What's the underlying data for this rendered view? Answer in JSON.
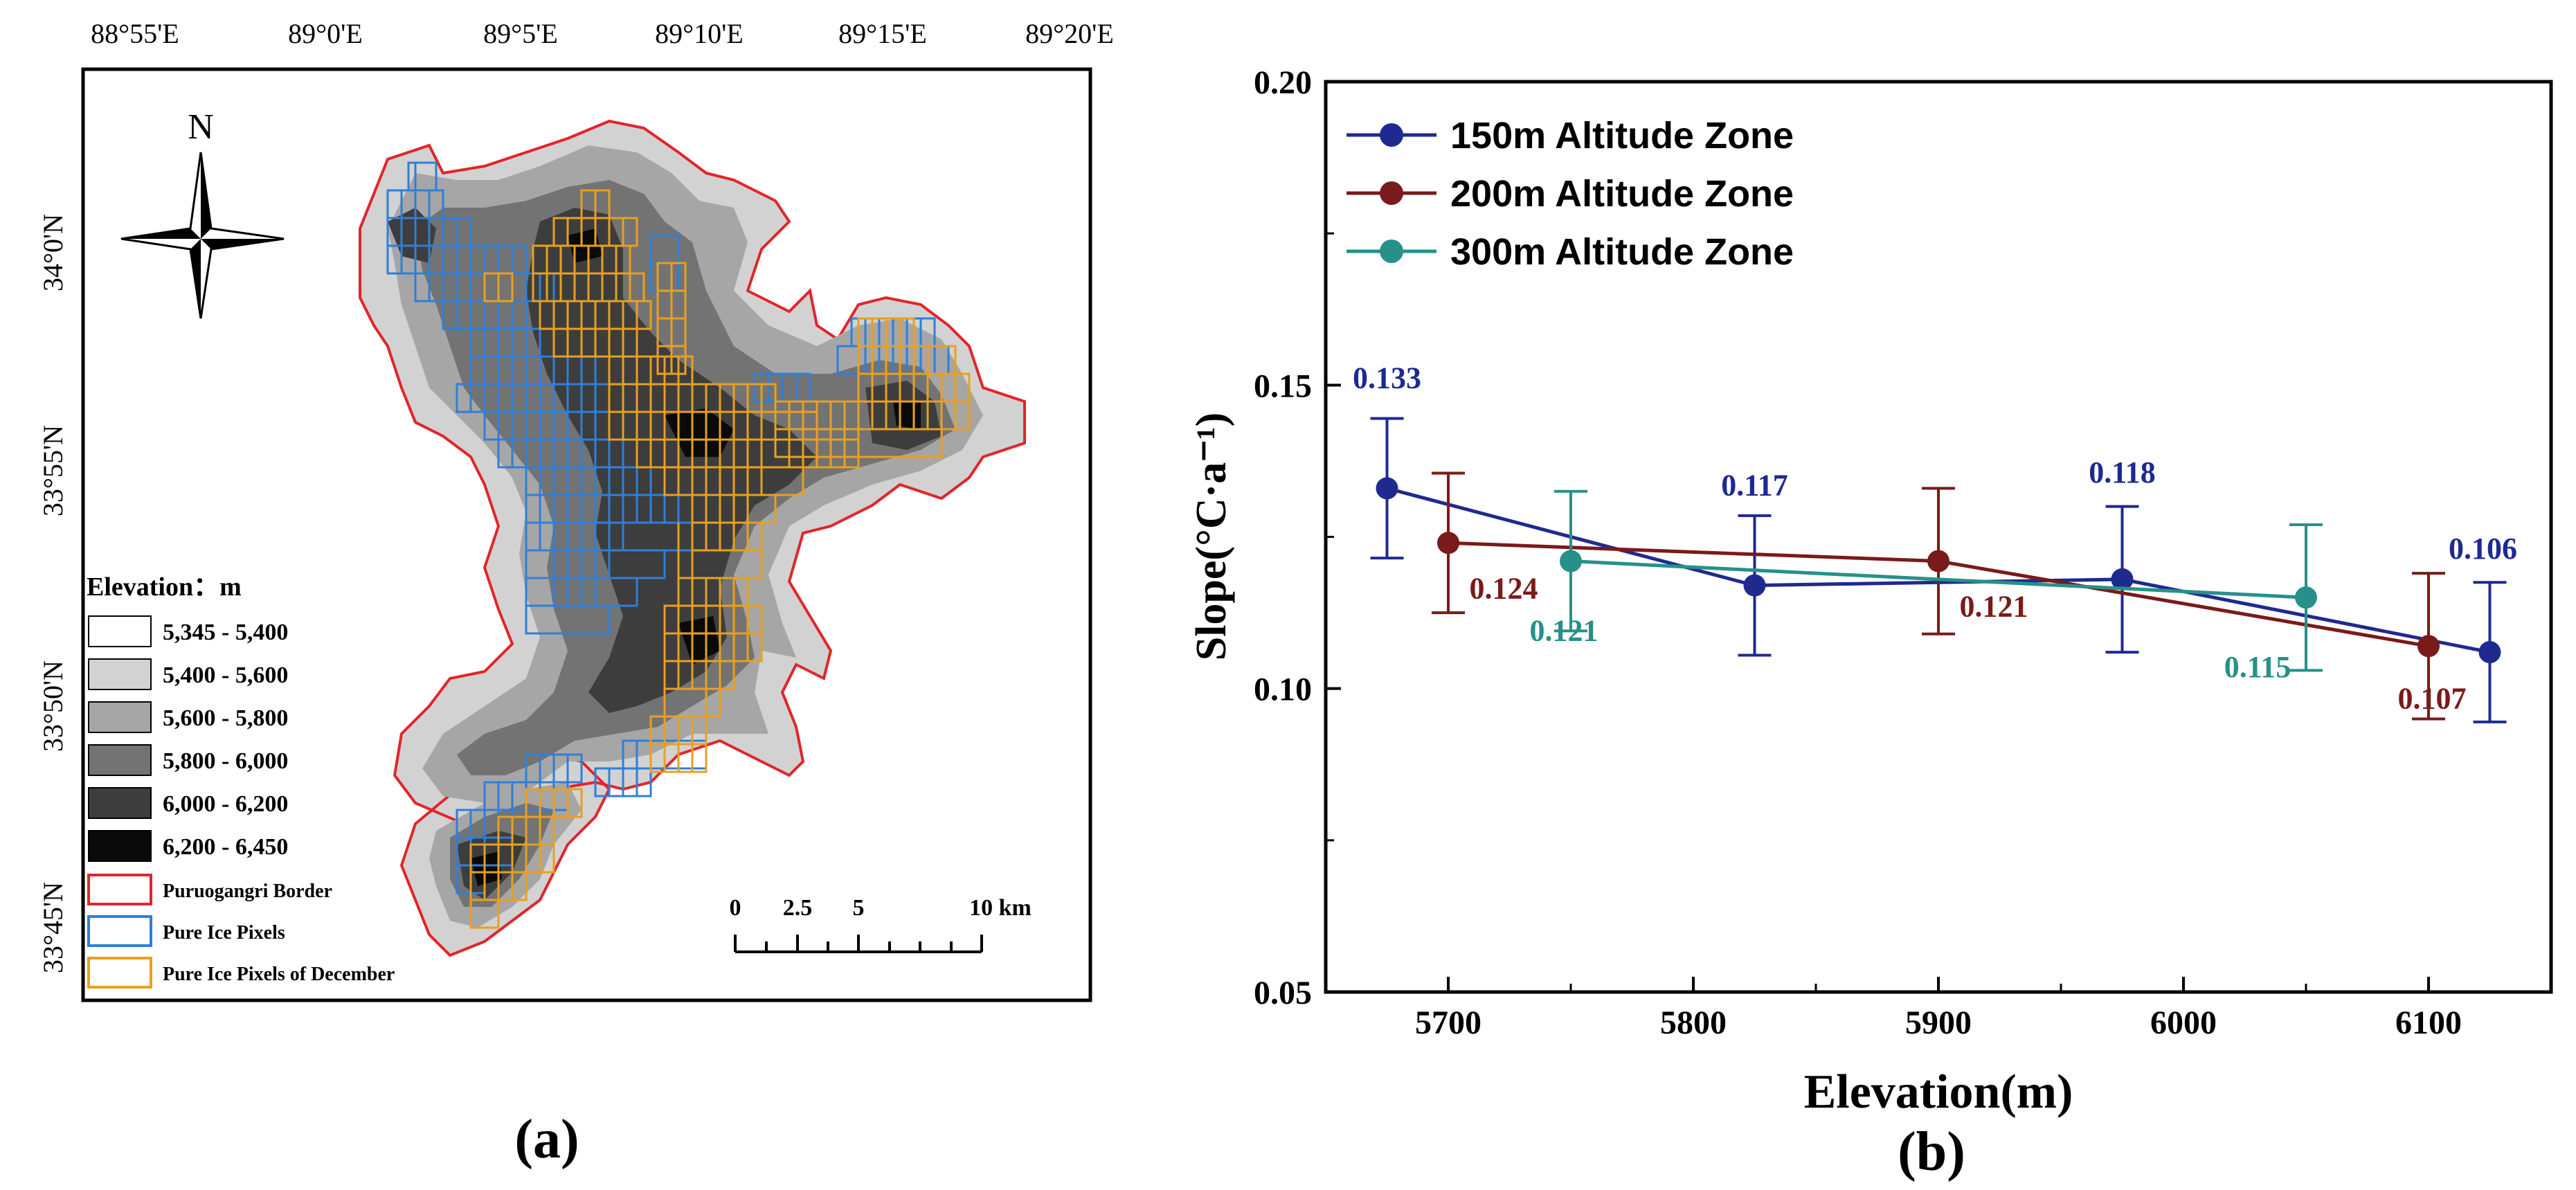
{
  "panel_a": {
    "label": "(a)",
    "lon_ticks": [
      "88°55'E",
      "89°0'E",
      "89°5'E",
      "89°10'E",
      "89°15'E",
      "89°20'E"
    ],
    "lat_ticks": [
      "34°0'N",
      "33°55'N",
      "33°50'N",
      "33°45'N"
    ],
    "north_label": "N",
    "legend": {
      "title": "Elevation：m",
      "elevation_classes": [
        {
          "label": "5,345 - 5,400",
          "color": "#ffffff"
        },
        {
          "label": "5,400 - 5,600",
          "color": "#d2d2d2"
        },
        {
          "label": "5,600 - 5,800",
          "color": "#a6a6a6"
        },
        {
          "label": "5,800 - 6,000",
          "color": "#737373"
        },
        {
          "label": "6,000 - 6,200",
          "color": "#3d3d3d"
        },
        {
          "label": "6,200 - 6,450",
          "color": "#0a0a0a"
        }
      ],
      "lines": [
        {
          "label": "Puruogangri Border",
          "color": "#e0262b"
        },
        {
          "label": "Pure Ice Pixels",
          "color": "#2f7fd8"
        },
        {
          "label": "Pure Ice Pixels of December",
          "color": "#e8a020"
        }
      ]
    },
    "scale_bar": {
      "ticks": [
        "0",
        "2.5",
        "5",
        "10 km"
      ]
    }
  },
  "chart_data": {
    "type": "line",
    "label": "(b)",
    "xlabel": "Elevation(m)",
    "ylabel": "Slope(°C·a⁻¹)",
    "xlim": [
      5650,
      6150
    ],
    "ylim": [
      0.05,
      0.2
    ],
    "xticks": [
      "5700",
      "5800",
      "5900",
      "6000",
      "6100"
    ],
    "yticks": [
      "0.05",
      "0.10",
      "0.15",
      "0.20"
    ],
    "legend_position": "top-left",
    "series": [
      {
        "name": "150m Altitude Zone",
        "color": "#1f2a8f",
        "x": [
          5675,
          5825,
          5975,
          6125
        ],
        "y": [
          0.133,
          0.117,
          0.118,
          0.106
        ],
        "err": [
          0.0115,
          0.0115,
          0.012,
          0.0115
        ],
        "labels": [
          "0.133",
          "0.117",
          "0.118",
          "0.106"
        ]
      },
      {
        "name": "200m Altitude Zone",
        "color": "#7a1a1a",
        "x": [
          5700,
          5900,
          6100
        ],
        "y": [
          0.124,
          0.121,
          0.107
        ],
        "err": [
          0.0115,
          0.012,
          0.012
        ],
        "labels": [
          "0.124",
          "0.121",
          "0.107"
        ]
      },
      {
        "name": "300m Altitude Zone",
        "color": "#27908a",
        "x": [
          5750,
          6050
        ],
        "y": [
          0.121,
          0.115
        ],
        "err": [
          0.0115,
          0.012
        ],
        "labels": [
          "0.121",
          "0.115"
        ]
      }
    ]
  }
}
